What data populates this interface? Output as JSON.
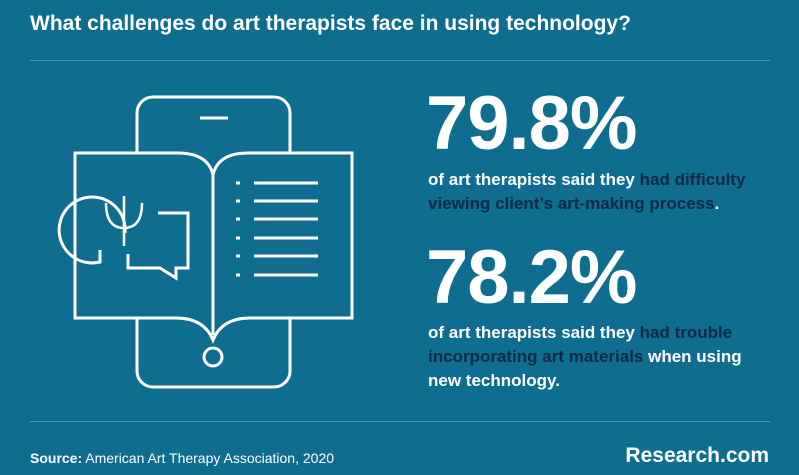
{
  "header": {
    "title": "What challenges do art therapists face in using technology?"
  },
  "stats": [
    {
      "value": "79.8%",
      "before": "of art therapists said they",
      "highlight": "had difficulty viewing client’s art-making process",
      "after": "."
    },
    {
      "value": "78.2%",
      "before": "of art therapists said they",
      "highlight": "had trouble incorporating art materials",
      "after": "when using new technology."
    }
  ],
  "footer": {
    "source_label": "Source:",
    "source": "American Art Therapy Association, 2020",
    "brand": "Research.com"
  }
}
